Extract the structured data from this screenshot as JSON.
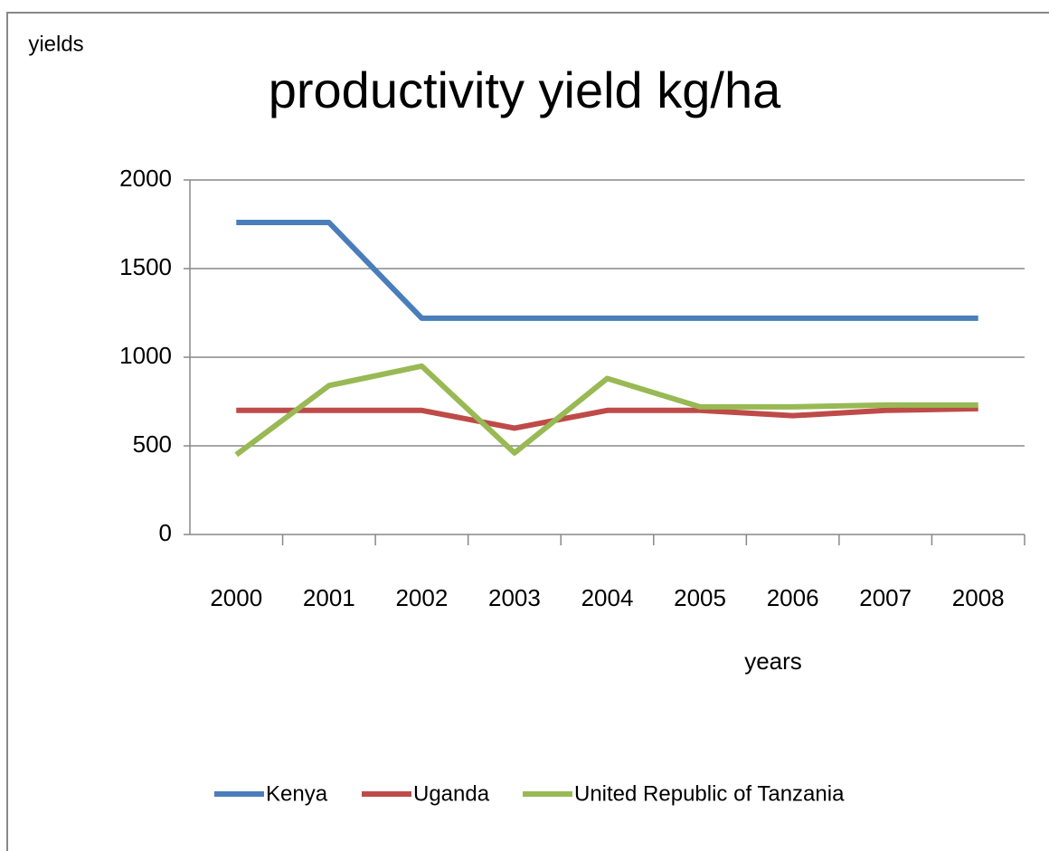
{
  "chart_data": {
    "type": "line",
    "title": "productivity yield kg/ha",
    "y_label": "yields",
    "x_label": "years",
    "categories": [
      "2000",
      "2001",
      "2002",
      "2003",
      "2004",
      "2005",
      "2006",
      "2007",
      "2008"
    ],
    "series": [
      {
        "name": "Kenya",
        "color": "#4a7ebb",
        "values": [
          1760,
          1760,
          1220,
          1220,
          1220,
          1220,
          1220,
          1220,
          1220
        ]
      },
      {
        "name": "Uganda",
        "color": "#be4b48",
        "values": [
          700,
          700,
          700,
          600,
          700,
          700,
          670,
          700,
          710
        ]
      },
      {
        "name": "United Republic of Tanzania",
        "color": "#98b954",
        "values": [
          450,
          840,
          950,
          460,
          880,
          720,
          720,
          730,
          730
        ]
      }
    ],
    "ylim": [
      0,
      2000
    ],
    "yticks": [
      0,
      500,
      1000,
      1500,
      2000
    ],
    "grid": true,
    "legend": "bottom"
  }
}
